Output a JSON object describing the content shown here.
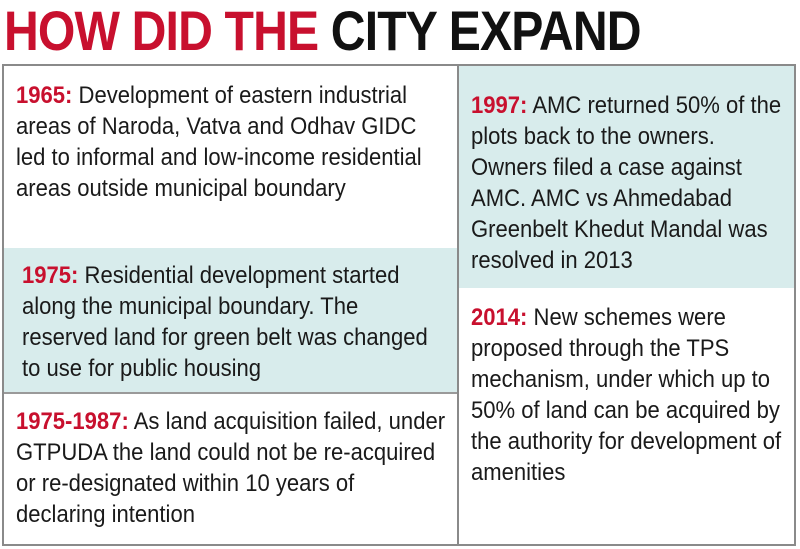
{
  "headline": {
    "part1": "HOW DID THE ",
    "part2": "CITY EXPAND"
  },
  "entries": {
    "e1965": {
      "year": "1965:",
      "text": "Development of eastern industrial areas of Naroda, Vatva and Odhav GIDC led to informal and low-income residential areas outside municipal boundary"
    },
    "e1975": {
      "year": "1975:",
      "text": "Residential development started along the municipal boundary. The reserved land for green belt was changed to use for public housing"
    },
    "e1975_1987": {
      "year": "1975-1987:",
      "text": "As land acquisition failed, under GTPUDA the land could not be re-acquired or re-designated within 10 years of declaring intention"
    },
    "e1997": {
      "year": "1997:",
      "text": "AMC returned 50% of the plots back to the owners. Owners filed a case against AMC. AMC vs Ahmedabad Greenbelt Khedut Mandal was resolved in 2013"
    },
    "e2014": {
      "year": "2014:",
      "text": "New schemes were proposed through the TPS mechanism, under which up to 50% of land can be acquired by the authority for development of amenities"
    }
  },
  "colors": {
    "accent_red": "#c8102e",
    "shade_teal": "#d8ecec",
    "text": "#1a1a1a",
    "border": "#8a8a8a"
  }
}
